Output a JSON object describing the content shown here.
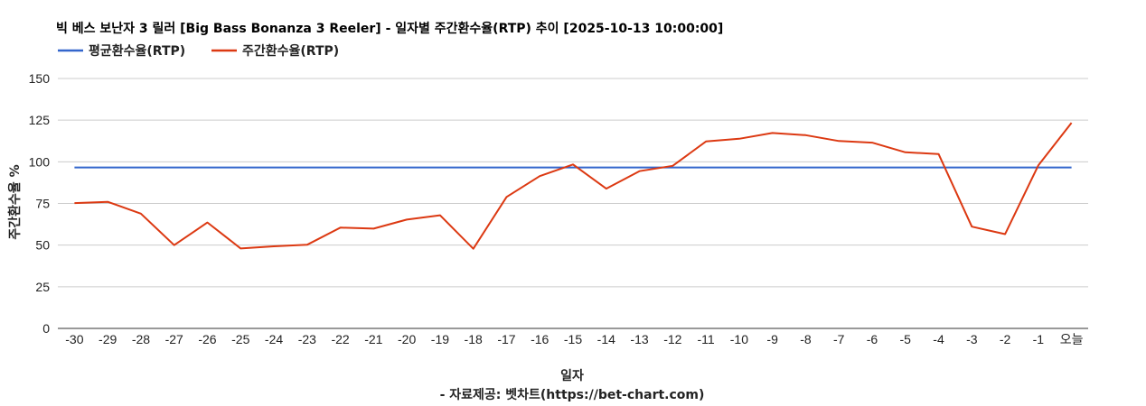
{
  "chart_data": {
    "type": "line",
    "title": "빅 베스 보난자 3 릴러 [Big Bass Bonanza 3 Reeler] - 일자별 주간환수율(RTP) 추이 [2025-10-13 10:00:00]",
    "xlabel": "일자",
    "ylabel": "주간환수율 %",
    "source": "- 자료제공: 벳차트(https://bet-chart.com)",
    "categories": [
      "-30",
      "-29",
      "-28",
      "-27",
      "-26",
      "-25",
      "-24",
      "-23",
      "-22",
      "-21",
      "-20",
      "-19",
      "-18",
      "-17",
      "-16",
      "-15",
      "-14",
      "-13",
      "-12",
      "-11",
      "-10",
      "-9",
      "-8",
      "-7",
      "-6",
      "-5",
      "-4",
      "-3",
      "-2",
      "-1",
      "오늘"
    ],
    "yticks": [
      "0",
      "25",
      "50",
      "75",
      "100",
      "125",
      "150"
    ],
    "ylim": [
      0,
      150
    ],
    "grid": true,
    "legend_position": "top-left",
    "series": [
      {
        "name": "평균환수율(RTP)",
        "color": "#3366cc",
        "values": [
          96.6,
          96.6,
          96.6,
          96.6,
          96.6,
          96.6,
          96.6,
          96.6,
          96.6,
          96.6,
          96.6,
          96.6,
          96.6,
          96.6,
          96.6,
          96.6,
          96.6,
          96.6,
          96.6,
          96.6,
          96.6,
          96.6,
          96.6,
          96.6,
          96.6,
          96.6,
          96.6,
          96.6,
          96.6,
          96.6,
          96.6
        ]
      },
      {
        "name": "주간환수율(RTP)",
        "color": "#dc3912",
        "values": [
          75.2,
          76.0,
          68.9,
          50.0,
          63.6,
          48.0,
          49.3,
          50.2,
          60.5,
          59.9,
          65.3,
          67.9,
          47.8,
          78.9,
          91.4,
          98.4,
          83.9,
          94.4,
          97.6,
          112.2,
          113.8,
          117.3,
          116.0,
          112.5,
          111.5,
          105.7,
          104.7,
          61.1,
          56.6,
          97.8,
          123.4
        ]
      }
    ]
  }
}
